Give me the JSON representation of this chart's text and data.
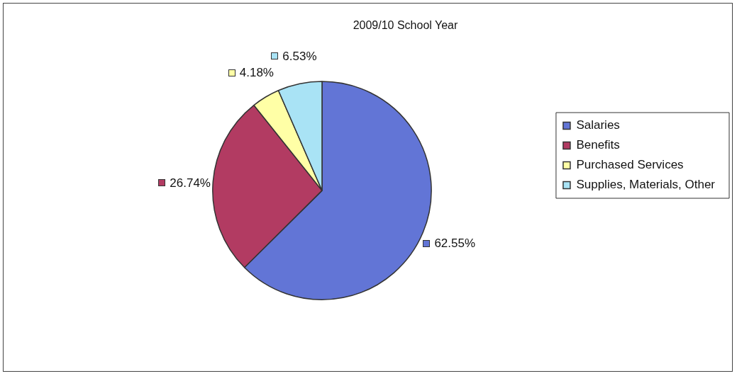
{
  "chart_data": {
    "type": "pie",
    "title": "2009/10 School Year",
    "categories": [
      "Salaries",
      "Benefits",
      "Purchased Services",
      "Supplies, Materials, Other"
    ],
    "values": [
      62.55,
      26.74,
      4.18,
      6.53
    ],
    "colors": [
      "#6275d6",
      "#b23b62",
      "#ffffa6",
      "#a9e3f5"
    ],
    "value_labels": [
      "62.55%",
      "26.74%",
      "4.18%",
      "6.53%"
    ],
    "legend": "right"
  }
}
